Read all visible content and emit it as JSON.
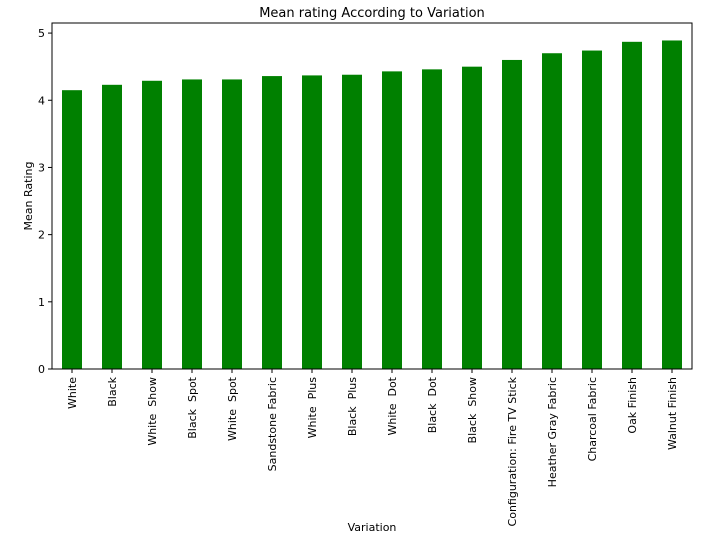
{
  "chart_data": {
    "type": "bar",
    "title": "Mean rating According to Variation",
    "xlabel": "Variation",
    "ylabel": "Mean Rating",
    "ylim": [
      0,
      5.15
    ],
    "yticks": [
      0,
      1,
      2,
      3,
      4,
      5
    ],
    "grid": false,
    "legend": "none",
    "bar_color": "#008000",
    "categories": [
      "White",
      "Black",
      "White  Show",
      "Black  Spot",
      "White  Spot",
      "Sandstone Fabric",
      "White  Plus",
      "Black  Plus",
      "White  Dot",
      "Black  Dot",
      "Black  Show",
      "Configuration: Fire TV Stick",
      "Heather Gray Fabric",
      "Charcoal Fabric",
      "Oak Finish",
      "Walnut Finish"
    ],
    "values": [
      4.15,
      4.23,
      4.29,
      4.31,
      4.31,
      4.36,
      4.37,
      4.38,
      4.43,
      4.46,
      4.5,
      4.6,
      4.7,
      4.74,
      4.87,
      4.89
    ]
  }
}
